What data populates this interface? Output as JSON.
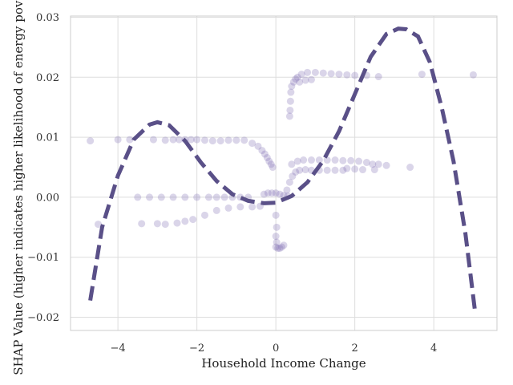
{
  "chart_data": {
    "type": "scatter",
    "title": "",
    "xlabel": "Household Income Change",
    "ylabel": "SHAP Value (higher indicates higher likelihood of energy poverty)",
    "xlim": [
      -5.2,
      5.6
    ],
    "ylim": [
      -0.0222,
      0.0302
    ],
    "x_ticks": [
      -4,
      -2,
      0,
      2,
      4
    ],
    "y_ticks": [
      -0.02,
      -0.01,
      0.0,
      0.01,
      0.02,
      0.03
    ],
    "x_tick_labels": [
      "−4",
      "−2",
      "0",
      "2",
      "4"
    ],
    "y_tick_labels": [
      "−0.02",
      "−0.01",
      "0.00",
      "0.01",
      "0.02",
      "0.03"
    ],
    "grid": true,
    "scatter_color": "#7b68b0",
    "trend_color": "#5a5088",
    "scatter_points": [
      {
        "x": -4.7,
        "y": 0.0094
      },
      {
        "x": -4.0,
        "y": 0.0096
      },
      {
        "x": -3.7,
        "y": 0.0096
      },
      {
        "x": -3.1,
        "y": 0.0096
      },
      {
        "x": -2.8,
        "y": 0.0095
      },
      {
        "x": -2.6,
        "y": 0.0096
      },
      {
        "x": -2.45,
        "y": 0.0096
      },
      {
        "x": -2.3,
        "y": 0.0096
      },
      {
        "x": -2.15,
        "y": 0.0096
      },
      {
        "x": -2.0,
        "y": 0.0096
      },
      {
        "x": -1.8,
        "y": 0.0095
      },
      {
        "x": -1.6,
        "y": 0.0094
      },
      {
        "x": -1.4,
        "y": 0.0094
      },
      {
        "x": -1.2,
        "y": 0.0095
      },
      {
        "x": -1.0,
        "y": 0.0095
      },
      {
        "x": -0.8,
        "y": 0.0095
      },
      {
        "x": -0.6,
        "y": 0.009
      },
      {
        "x": -0.45,
        "y": 0.0085
      },
      {
        "x": -0.35,
        "y": 0.0078
      },
      {
        "x": -0.28,
        "y": 0.0072
      },
      {
        "x": -0.22,
        "y": 0.0066
      },
      {
        "x": -0.17,
        "y": 0.006
      },
      {
        "x": -0.12,
        "y": 0.0055
      },
      {
        "x": -0.08,
        "y": 0.005
      },
      {
        "x": -3.5,
        "y": 0.0
      },
      {
        "x": -3.2,
        "y": 0.0
      },
      {
        "x": -2.9,
        "y": 0.0
      },
      {
        "x": -2.6,
        "y": 0.0
      },
      {
        "x": -2.3,
        "y": 0.0
      },
      {
        "x": -2.0,
        "y": 0.0
      },
      {
        "x": -1.7,
        "y": 0.0
      },
      {
        "x": -1.5,
        "y": 0.0
      },
      {
        "x": -1.3,
        "y": 0.0
      },
      {
        "x": -1.1,
        "y": 0.0
      },
      {
        "x": -0.9,
        "y": 0.0
      },
      {
        "x": -0.7,
        "y": 0.0
      },
      {
        "x": -4.5,
        "y": -0.0045
      },
      {
        "x": -3.4,
        "y": -0.0044
      },
      {
        "x": -3.0,
        "y": -0.0044
      },
      {
        "x": -2.8,
        "y": -0.0045
      },
      {
        "x": -2.5,
        "y": -0.0043
      },
      {
        "x": -2.3,
        "y": -0.004
      },
      {
        "x": -2.1,
        "y": -0.0037
      },
      {
        "x": -1.8,
        "y": -0.003
      },
      {
        "x": -1.5,
        "y": -0.0022
      },
      {
        "x": -1.2,
        "y": -0.0018
      },
      {
        "x": -0.9,
        "y": -0.0016
      },
      {
        "x": -0.6,
        "y": -0.0016
      },
      {
        "x": -0.4,
        "y": -0.0015
      },
      {
        "x": -0.3,
        "y": 0.0005
      },
      {
        "x": -0.2,
        "y": 0.0007
      },
      {
        "x": -0.1,
        "y": 0.0007
      },
      {
        "x": 0.0,
        "y": 0.0007
      },
      {
        "x": 0.1,
        "y": 0.0005
      },
      {
        "x": 0.2,
        "y": 0.0003
      },
      {
        "x": 0.3,
        "y": 0.0002
      },
      {
        "x": 0.0,
        "y": -0.003
      },
      {
        "x": 0.02,
        "y": -0.005
      },
      {
        "x": 0.0,
        "y": -0.0065
      },
      {
        "x": 0.02,
        "y": -0.0075
      },
      {
        "x": 0.0,
        "y": -0.0083
      },
      {
        "x": 0.05,
        "y": -0.0085
      },
      {
        "x": 0.1,
        "y": -0.0085
      },
      {
        "x": 0.15,
        "y": -0.0083
      },
      {
        "x": 0.2,
        "y": -0.008
      },
      {
        "x": 0.28,
        "y": 0.0012
      },
      {
        "x": 0.35,
        "y": 0.0025
      },
      {
        "x": 0.42,
        "y": 0.0035
      },
      {
        "x": 0.5,
        "y": 0.0042
      },
      {
        "x": 0.6,
        "y": 0.0045
      },
      {
        "x": 0.75,
        "y": 0.0046
      },
      {
        "x": 0.9,
        "y": 0.0045
      },
      {
        "x": 1.1,
        "y": 0.0045
      },
      {
        "x": 1.3,
        "y": 0.0045
      },
      {
        "x": 1.5,
        "y": 0.0045
      },
      {
        "x": 1.7,
        "y": 0.0045
      },
      {
        "x": 0.4,
        "y": 0.0055
      },
      {
        "x": 0.55,
        "y": 0.006
      },
      {
        "x": 0.7,
        "y": 0.0062
      },
      {
        "x": 0.9,
        "y": 0.0062
      },
      {
        "x": 1.1,
        "y": 0.0062
      },
      {
        "x": 1.3,
        "y": 0.0062
      },
      {
        "x": 1.5,
        "y": 0.0062
      },
      {
        "x": 1.7,
        "y": 0.0061
      },
      {
        "x": 1.9,
        "y": 0.0061
      },
      {
        "x": 2.1,
        "y": 0.006
      },
      {
        "x": 2.3,
        "y": 0.0058
      },
      {
        "x": 2.45,
        "y": 0.0055
      },
      {
        "x": 2.6,
        "y": 0.0055
      },
      {
        "x": 2.8,
        "y": 0.0053
      },
      {
        "x": 3.4,
        "y": 0.005
      },
      {
        "x": 1.8,
        "y": 0.0048
      },
      {
        "x": 2.0,
        "y": 0.0047
      },
      {
        "x": 2.2,
        "y": 0.0046
      },
      {
        "x": 2.5,
        "y": 0.0046
      },
      {
        "x": 0.35,
        "y": 0.0135
      },
      {
        "x": 0.36,
        "y": 0.0145
      },
      {
        "x": 0.37,
        "y": 0.016
      },
      {
        "x": 0.38,
        "y": 0.0175
      },
      {
        "x": 0.4,
        "y": 0.0185
      },
      {
        "x": 0.45,
        "y": 0.0192
      },
      {
        "x": 0.5,
        "y": 0.0197
      },
      {
        "x": 0.55,
        "y": 0.02
      },
      {
        "x": 0.65,
        "y": 0.0205
      },
      {
        "x": 0.8,
        "y": 0.0208
      },
      {
        "x": 1.0,
        "y": 0.0208
      },
      {
        "x": 1.2,
        "y": 0.0207
      },
      {
        "x": 1.4,
        "y": 0.0206
      },
      {
        "x": 1.6,
        "y": 0.0205
      },
      {
        "x": 1.8,
        "y": 0.0204
      },
      {
        "x": 2.0,
        "y": 0.0203
      },
      {
        "x": 2.3,
        "y": 0.0203
      },
      {
        "x": 2.6,
        "y": 0.0201
      },
      {
        "x": 3.7,
        "y": 0.0205
      },
      {
        "x": 5.0,
        "y": 0.0204
      },
      {
        "x": 0.6,
        "y": 0.0192
      },
      {
        "x": 0.75,
        "y": 0.0195
      },
      {
        "x": 0.9,
        "y": 0.0196
      }
    ],
    "trend_line_points": [
      {
        "x": -4.7,
        "y": -0.0172
      },
      {
        "x": -4.4,
        "y": -0.005
      },
      {
        "x": -4.0,
        "y": 0.0036
      },
      {
        "x": -3.6,
        "y": 0.0096
      },
      {
        "x": -3.2,
        "y": 0.0121
      },
      {
        "x": -3.0,
        "y": 0.0125
      },
      {
        "x": -2.7,
        "y": 0.012
      },
      {
        "x": -2.3,
        "y": 0.0094
      },
      {
        "x": -1.9,
        "y": 0.0058
      },
      {
        "x": -1.5,
        "y": 0.0027
      },
      {
        "x": -1.1,
        "y": 0.0005
      },
      {
        "x": -0.7,
        "y": -0.0006
      },
      {
        "x": -0.3,
        "y": -0.001
      },
      {
        "x": 0.0,
        "y": -0.0009
      },
      {
        "x": 0.4,
        "y": 0.0002
      },
      {
        "x": 0.8,
        "y": 0.0025
      },
      {
        "x": 1.2,
        "y": 0.0061
      },
      {
        "x": 1.6,
        "y": 0.011
      },
      {
        "x": 2.0,
        "y": 0.0172
      },
      {
        "x": 2.4,
        "y": 0.0234
      },
      {
        "x": 2.8,
        "y": 0.0272
      },
      {
        "x": 3.1,
        "y": 0.0281
      },
      {
        "x": 3.3,
        "y": 0.028
      },
      {
        "x": 3.6,
        "y": 0.0268
      },
      {
        "x": 3.9,
        "y": 0.0225
      },
      {
        "x": 4.2,
        "y": 0.015
      },
      {
        "x": 4.5,
        "y": 0.006
      },
      {
        "x": 4.8,
        "y": -0.006
      },
      {
        "x": 5.05,
        "y": -0.0193
      }
    ]
  }
}
